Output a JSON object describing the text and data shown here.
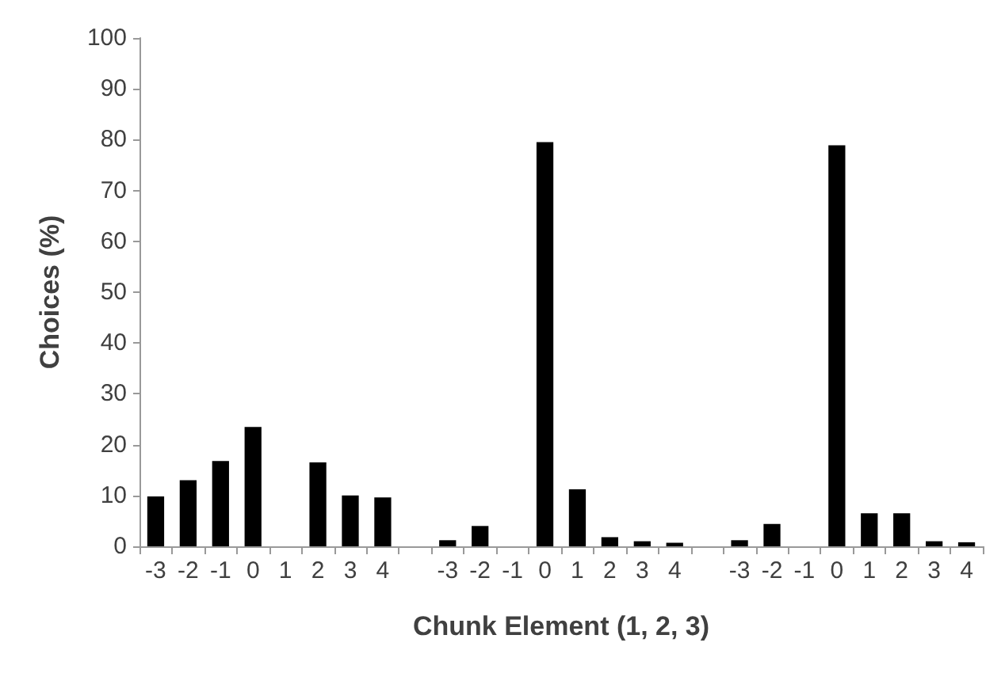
{
  "chart_data": {
    "type": "bar",
    "xlabel": "Chunk Element (1, 2, 3)",
    "ylabel": "Choices (%)",
    "categories": [
      "-3",
      "-2",
      "-1",
      "0",
      "1",
      "2",
      "3",
      "4",
      null,
      "-3",
      "-2",
      "-1",
      "0",
      "1",
      "2",
      "3",
      "4",
      null,
      "-3",
      "-2",
      "-1",
      "0",
      "1",
      "2",
      "3",
      "4"
    ],
    "values": [
      9.8,
      13,
      16.8,
      23.5,
      0,
      16.5,
      10,
      9.6,
      null,
      1.2,
      4,
      0,
      79.5,
      11.2,
      1.8,
      1,
      0.7,
      null,
      1.2,
      4.4,
      0,
      78.9,
      6.5,
      6.5,
      1,
      0.8
    ],
    "color": "#000000",
    "ylim": [
      0,
      100
    ],
    "yticks": [
      0,
      10,
      20,
      30,
      40,
      50,
      60,
      70,
      80,
      90,
      100
    ],
    "grid": false
  }
}
